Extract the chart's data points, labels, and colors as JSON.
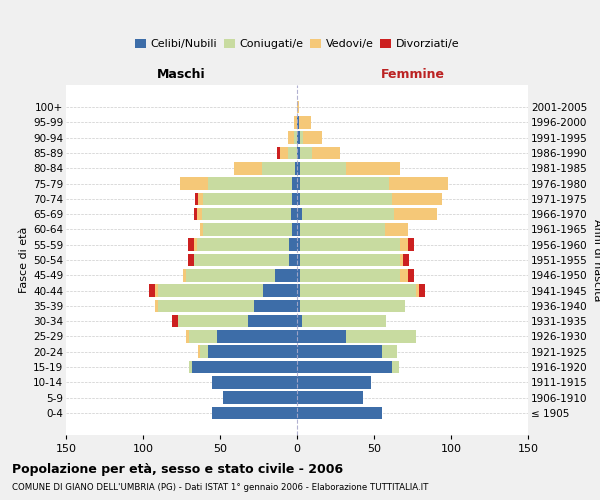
{
  "age_groups": [
    "100+",
    "95-99",
    "90-94",
    "85-89",
    "80-84",
    "75-79",
    "70-74",
    "65-69",
    "60-64",
    "55-59",
    "50-54",
    "45-49",
    "40-44",
    "35-39",
    "30-34",
    "25-29",
    "20-24",
    "15-19",
    "10-14",
    "5-9",
    "0-4"
  ],
  "birth_years": [
    "≤ 1905",
    "1906-1910",
    "1911-1915",
    "1916-1920",
    "1921-1925",
    "1926-1930",
    "1931-1935",
    "1936-1940",
    "1941-1945",
    "1946-1950",
    "1951-1955",
    "1956-1960",
    "1961-1965",
    "1966-1970",
    "1971-1975",
    "1976-1980",
    "1981-1985",
    "1986-1990",
    "1991-1995",
    "1996-2000",
    "2001-2005"
  ],
  "male": {
    "celibe": [
      0,
      0,
      0,
      0,
      1,
      3,
      3,
      4,
      3,
      5,
      5,
      14,
      22,
      28,
      32,
      52,
      58,
      68,
      55,
      48,
      55
    ],
    "coniugato": [
      0,
      0,
      2,
      6,
      22,
      55,
      58,
      58,
      58,
      60,
      62,
      58,
      68,
      62,
      45,
      18,
      5,
      2,
      0,
      0,
      0
    ],
    "vedovo": [
      0,
      2,
      4,
      5,
      18,
      18,
      3,
      3,
      2,
      2,
      0,
      2,
      2,
      2,
      0,
      2,
      1,
      0,
      0,
      0,
      0
    ],
    "divorziato": [
      0,
      0,
      0,
      2,
      0,
      0,
      2,
      2,
      0,
      4,
      4,
      0,
      4,
      0,
      4,
      0,
      0,
      0,
      0,
      0,
      0
    ]
  },
  "female": {
    "nubile": [
      0,
      1,
      2,
      2,
      2,
      2,
      2,
      3,
      2,
      2,
      2,
      2,
      2,
      2,
      3,
      32,
      55,
      62,
      48,
      43,
      55
    ],
    "coniugata": [
      0,
      0,
      2,
      8,
      30,
      58,
      60,
      60,
      55,
      65,
      65,
      65,
      75,
      68,
      55,
      45,
      10,
      4,
      0,
      0,
      0
    ],
    "vedova": [
      1,
      8,
      12,
      18,
      35,
      38,
      32,
      28,
      15,
      5,
      2,
      5,
      2,
      0,
      0,
      0,
      0,
      0,
      0,
      0,
      0
    ],
    "divorziata": [
      0,
      0,
      0,
      0,
      0,
      0,
      0,
      0,
      0,
      4,
      4,
      4,
      4,
      0,
      0,
      0,
      0,
      0,
      0,
      0,
      0
    ]
  },
  "colors": {
    "celibe": "#3d6da8",
    "coniugato": "#c8dba0",
    "vedovo": "#f5c878",
    "divorziato": "#cc2020"
  },
  "xlim": 150,
  "title": "Popolazione per età, sesso e stato civile - 2006",
  "subtitle": "COMUNE DI GIANO DELL'UMBRIA (PG) - Dati ISTAT 1° gennaio 2006 - Elaborazione TUTTITALIA.IT",
  "xlabel_left": "Maschi",
  "xlabel_right": "Femmine",
  "ylabel_left": "Fasce di età",
  "ylabel_right": "Anni di nascita",
  "bg_color": "#f0f0f0",
  "plot_bg": "#ffffff",
  "legend_labels": [
    "Celibi/Nubili",
    "Coniugati/e",
    "Vedovi/e",
    "Divorziati/e"
  ]
}
